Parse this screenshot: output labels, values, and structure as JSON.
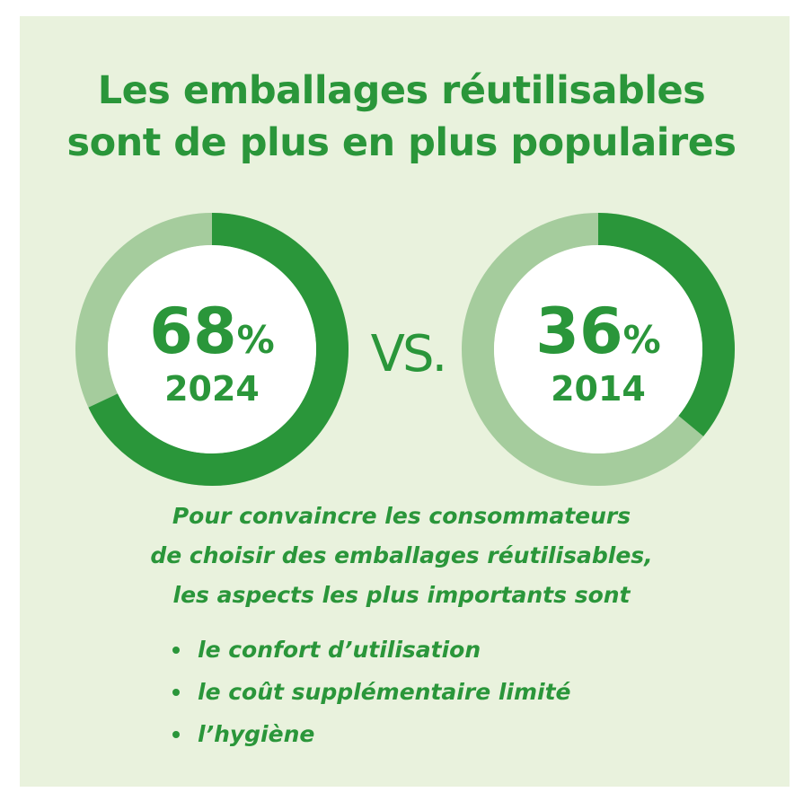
{
  "title": {
    "line1": "Les emballages réutilisables",
    "line2": "sont de plus en plus populaires"
  },
  "chart_data": [
    {
      "type": "pie",
      "categories": [
        "2024"
      ],
      "values": [
        68
      ],
      "value_label": "68",
      "percent_sign": "%",
      "year_label": "2024",
      "ylim": [
        0,
        100
      ]
    },
    {
      "type": "pie",
      "categories": [
        "2014"
      ],
      "values": [
        36
      ],
      "value_label": "36",
      "percent_sign": "%",
      "year_label": "2014",
      "ylim": [
        0,
        100
      ]
    }
  ],
  "vs_label": "VS.",
  "colors": {
    "background": "#e9f2dd",
    "accent": "#2a963a",
    "track": "#a5cc9d",
    "center": "#ffffff"
  },
  "description": {
    "line1": "Pour convaincre les consommateurs",
    "line2": "de choisir des emballages réutilisables,",
    "line3": "les aspects les plus importants sont"
  },
  "bullets": [
    "le confort d’utilisation",
    "le coût supplémentaire limité",
    "l’hygiène"
  ]
}
